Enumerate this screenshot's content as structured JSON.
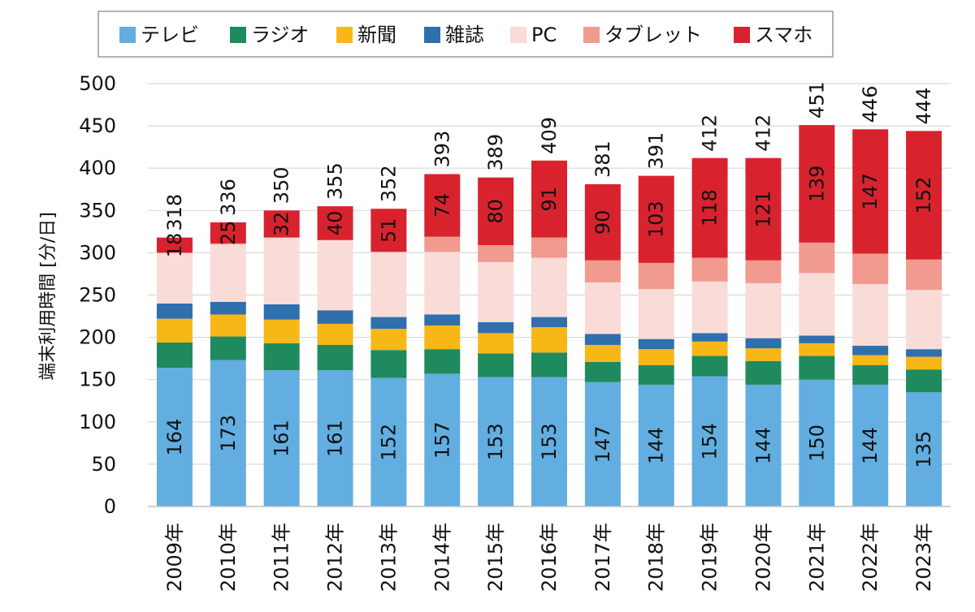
{
  "chart_data": {
    "type": "bar",
    "stacked": true,
    "title": "",
    "xlabel": "",
    "ylabel": "端末利用時間 [分/日]",
    "ylim": [
      0,
      500
    ],
    "yticks": [
      0,
      50,
      100,
      150,
      200,
      250,
      300,
      350,
      400,
      450,
      500
    ],
    "grid": true,
    "legend_position": "top",
    "categories": [
      "2009年",
      "2010年",
      "2011年",
      "2012年",
      "2013年",
      "2014年",
      "2015年",
      "2016年",
      "2017年",
      "2018年",
      "2019年",
      "2020年",
      "2021年",
      "2022年",
      "2023年"
    ],
    "series": [
      {
        "name": "テレビ",
        "color": "#62aee0",
        "labeled": true,
        "values": [
          164,
          173,
          161,
          161,
          152,
          157,
          153,
          153,
          147,
          144,
          154,
          144,
          150,
          144,
          135
        ]
      },
      {
        "name": "ラジオ",
        "color": "#1f8a5e",
        "labeled": false,
        "values": [
          30,
          28,
          32,
          30,
          33,
          29,
          28,
          29,
          24,
          23,
          24,
          28,
          28,
          23,
          27
        ]
      },
      {
        "name": "新聞",
        "color": "#f7b717",
        "labeled": false,
        "values": [
          28,
          26,
          28,
          25,
          25,
          28,
          24,
          30,
          20,
          19,
          17,
          15,
          15,
          12,
          15
        ]
      },
      {
        "name": "雑誌",
        "color": "#2f6fad",
        "labeled": false,
        "values": [
          18,
          15,
          18,
          16,
          14,
          13,
          13,
          12,
          13,
          12,
          10,
          12,
          9,
          11,
          9
        ]
      },
      {
        "name": "PC",
        "color": "#f9dbd8",
        "labeled": false,
        "values": [
          60,
          68,
          79,
          83,
          77,
          74,
          71,
          70,
          61,
          59,
          61,
          65,
          74,
          73,
          70
        ]
      },
      {
        "name": "タブレット",
        "color": "#f19a8f",
        "labeled": false,
        "values": [
          0,
          1,
          0,
          0,
          0,
          18,
          20,
          24,
          26,
          31,
          28,
          27,
          36,
          36,
          36
        ]
      },
      {
        "name": "スマホ",
        "color": "#d8232f",
        "labeled": true,
        "values": [
          18,
          25,
          32,
          40,
          51,
          74,
          80,
          91,
          90,
          103,
          118,
          121,
          139,
          147,
          152
        ]
      }
    ],
    "totals": [
      318,
      336,
      350,
      355,
      352,
      393,
      389,
      409,
      381,
      391,
      412,
      412,
      451,
      446,
      444
    ]
  }
}
